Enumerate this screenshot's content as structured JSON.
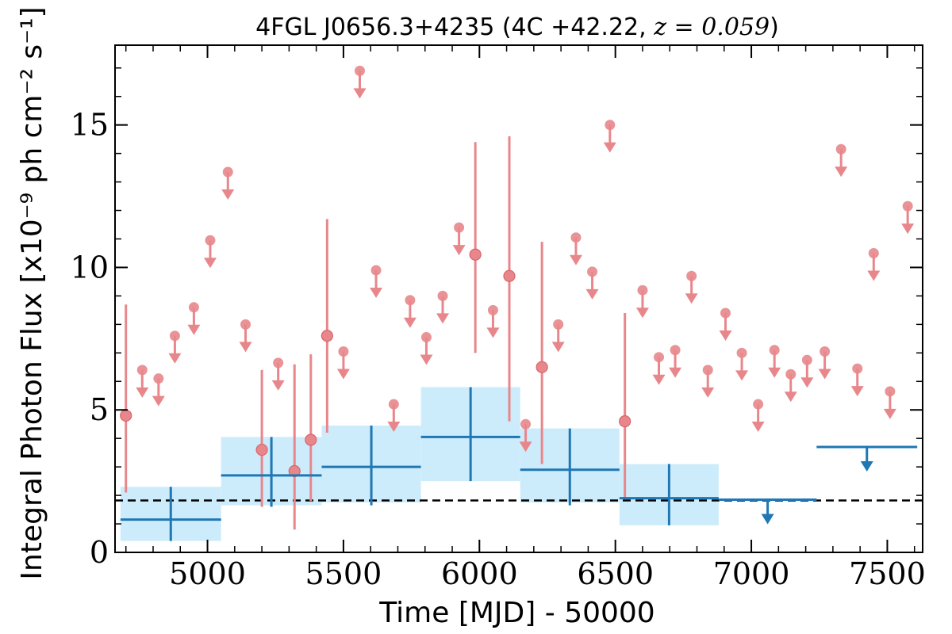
{
  "chart_data": {
    "type": "scatter",
    "title": {
      "prefix": "4FGL J0656.3+4235 (4C +42.22, ",
      "math": "z = 0.059",
      "suffix": ")"
    },
    "xlabel": "Time [MJD] - 50000",
    "ylabel": "Integral Photon Flux [x10⁻⁹ ph cm⁻² s⁻¹]",
    "xlim": [
      4660,
      7630
    ],
    "ylim": [
      0,
      17.8
    ],
    "xticks": [
      5000,
      5500,
      6000,
      6500,
      7000,
      7500
    ],
    "yticks": [
      0,
      5,
      10,
      15
    ],
    "xtick_labels": [
      "5000",
      "5500",
      "6000",
      "6500",
      "7000",
      "7500"
    ],
    "ytick_labels": [
      "0",
      "5",
      "10",
      "15"
    ],
    "grid": false,
    "colors": {
      "short": "#e8878b",
      "long": "#1f77b4",
      "band": "#cdecfb",
      "reference": "#000000"
    },
    "reference_line": {
      "y": 1.82,
      "style": "dashed"
    },
    "series": [
      {
        "points": [
          {
            "x": 4700,
            "y": 4.8,
            "lo": 2.1,
            "hi": 8.7
          },
          {
            "x": 4760,
            "y": 6.4,
            "ul": true
          },
          {
            "x": 4820,
            "y": 6.1,
            "ul": true
          },
          {
            "x": 4880,
            "y": 7.6,
            "ul": true
          },
          {
            "x": 4950,
            "y": 8.6,
            "ul": true
          },
          {
            "x": 5010,
            "y": 10.95,
            "ul": true
          },
          {
            "x": 5075,
            "y": 13.35,
            "ul": true
          },
          {
            "x": 5140,
            "y": 8.0,
            "ul": true
          },
          {
            "x": 5200,
            "y": 3.6,
            "lo": 1.6,
            "hi": 6.4
          },
          {
            "x": 5260,
            "y": 6.65,
            "ul": true
          },
          {
            "x": 5320,
            "y": 2.85,
            "lo": 0.8,
            "hi": 6.6
          },
          {
            "x": 5380,
            "y": 3.95,
            "lo": 1.8,
            "hi": 6.95
          },
          {
            "x": 5440,
            "y": 7.6,
            "lo": 4.2,
            "hi": 11.7
          },
          {
            "x": 5500,
            "y": 7.05,
            "ul": true
          },
          {
            "x": 5560,
            "y": 16.9,
            "ul": true
          },
          {
            "x": 5620,
            "y": 9.9,
            "ul": true
          },
          {
            "x": 5685,
            "y": 5.2,
            "ul": true
          },
          {
            "x": 5745,
            "y": 8.85,
            "ul": true
          },
          {
            "x": 5805,
            "y": 7.55,
            "ul": true
          },
          {
            "x": 5865,
            "y": 9.0,
            "ul": true
          },
          {
            "x": 5925,
            "y": 11.4,
            "ul": true
          },
          {
            "x": 5985,
            "y": 10.45,
            "lo": 7.0,
            "hi": 14.4
          },
          {
            "x": 6050,
            "y": 8.5,
            "ul": true
          },
          {
            "x": 6110,
            "y": 9.7,
            "lo": 4.6,
            "hi": 14.6
          },
          {
            "x": 6170,
            "y": 4.5,
            "ul": true
          },
          {
            "x": 6230,
            "y": 6.5,
            "lo": 3.1,
            "hi": 10.9
          },
          {
            "x": 6290,
            "y": 8.0,
            "ul": true
          },
          {
            "x": 6355,
            "y": 11.05,
            "ul": true
          },
          {
            "x": 6415,
            "y": 9.85,
            "ul": true
          },
          {
            "x": 6480,
            "y": 15.0,
            "ul": true
          },
          {
            "x": 6535,
            "y": 4.6,
            "lo": 1.9,
            "hi": 8.4
          },
          {
            "x": 6600,
            "y": 9.2,
            "ul": true
          },
          {
            "x": 6660,
            "y": 6.85,
            "ul": true
          },
          {
            "x": 6720,
            "y": 7.1,
            "ul": true
          },
          {
            "x": 6780,
            "y": 9.7,
            "ul": true
          },
          {
            "x": 6840,
            "y": 6.4,
            "ul": true
          },
          {
            "x": 6905,
            "y": 8.4,
            "ul": true
          },
          {
            "x": 6965,
            "y": 7.0,
            "ul": true
          },
          {
            "x": 7025,
            "y": 5.2,
            "ul": true
          },
          {
            "x": 7085,
            "y": 7.1,
            "ul": true
          },
          {
            "x": 7145,
            "y": 6.25,
            "ul": true
          },
          {
            "x": 7205,
            "y": 6.75,
            "ul": true
          },
          {
            "x": 7270,
            "y": 7.05,
            "ul": true
          },
          {
            "x": 7330,
            "y": 14.15,
            "ul": true
          },
          {
            "x": 7390,
            "y": 6.45,
            "ul": true
          },
          {
            "x": 7450,
            "y": 10.5,
            "ul": true
          },
          {
            "x": 7510,
            "y": 5.65,
            "ul": true
          },
          {
            "x": 7575,
            "y": 12.15,
            "ul": true
          }
        ]
      },
      {
        "bins": [
          {
            "x0": 4680,
            "x1": 5050,
            "y": 1.15,
            "lo": 0.4,
            "hi": 2.3,
            "band": [
              0.4,
              2.3
            ]
          },
          {
            "x0": 5050,
            "x1": 5420,
            "y": 2.7,
            "lo": 1.6,
            "hi": 4.05,
            "band": [
              1.65,
              4.05
            ]
          },
          {
            "x0": 5420,
            "x1": 5785,
            "y": 3.0,
            "lo": 1.65,
            "hi": 4.45,
            "band": [
              1.75,
              4.45
            ]
          },
          {
            "x0": 5785,
            "x1": 6150,
            "y": 4.05,
            "lo": 2.5,
            "hi": 5.8,
            "band": [
              2.5,
              5.8
            ]
          },
          {
            "x0": 6150,
            "x1": 6515,
            "y": 2.9,
            "lo": 1.65,
            "hi": 4.35,
            "band": [
              1.75,
              4.35
            ]
          },
          {
            "x0": 6515,
            "x1": 6880,
            "y": 1.9,
            "lo": 0.95,
            "hi": 3.1,
            "band": [
              0.95,
              3.1
            ]
          },
          {
            "x0": 6880,
            "x1": 7240,
            "y": 1.85,
            "ul": true
          },
          {
            "x0": 7240,
            "x1": 7610,
            "y": 3.7,
            "ul": true
          }
        ]
      }
    ]
  }
}
